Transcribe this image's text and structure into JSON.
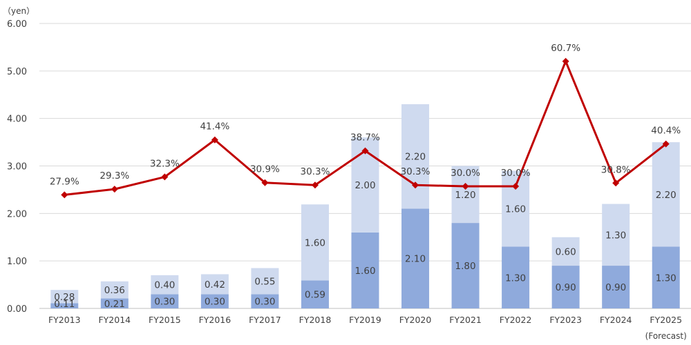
{
  "chart_data": {
    "type": "bar",
    "stacked": true,
    "unit": "（yen）",
    "categories": [
      "FY2013",
      "FY2014",
      "FY2015",
      "FY2016",
      "FY2017",
      "FY2018",
      "FY2019",
      "FY2020",
      "FY2021",
      "FY2022",
      "FY2023",
      "FY2024",
      "FY2025"
    ],
    "forecast_note": "(Forecast)",
    "ylim": [
      0,
      6
    ],
    "yticks": [
      "0.00",
      "1.00",
      "2.00",
      "3.00",
      "4.00",
      "5.00",
      "6.00"
    ],
    "grid": true,
    "series": [
      {
        "values": [
          0.11,
          0.21,
          0.3,
          0.3,
          0.3,
          0.59,
          1.6,
          2.1,
          1.8,
          1.3,
          0.9,
          0.9,
          1.3
        ],
        "labels": [
          "0.11",
          "0.21",
          "0.30",
          "0.30",
          "0.30",
          "0.59",
          "1.60",
          "2.10",
          "1.80",
          "1.30",
          "0.90",
          "0.90",
          "1.30"
        ],
        "color": "#8faadc"
      },
      {
        "values": [
          0.28,
          0.36,
          0.4,
          0.42,
          0.55,
          1.6,
          2.0,
          2.2,
          1.2,
          1.6,
          0.6,
          1.3,
          2.2
        ],
        "labels": [
          "0.28",
          "0.36",
          "0.40",
          "0.42",
          "0.55",
          "1.60",
          "2.00",
          "2.20",
          "1.20",
          "1.60",
          "0.60",
          "1.30",
          "2.20"
        ],
        "color": "#cfdaef"
      }
    ],
    "line": {
      "values": [
        27.9,
        29.3,
        32.3,
        41.4,
        30.9,
        30.3,
        38.7,
        30.3,
        30.0,
        30.0,
        60.7,
        30.8,
        40.4
      ],
      "labels": [
        "27.9%",
        "29.3%",
        "32.3%",
        "41.4%",
        "30.9%",
        "30.3%",
        "38.7%",
        "30.3%",
        "30.0%",
        "30.0%",
        "60.7%",
        "30.8%",
        "40.4%"
      ],
      "ylim": [
        0,
        70
      ],
      "color": "#c00000"
    }
  }
}
